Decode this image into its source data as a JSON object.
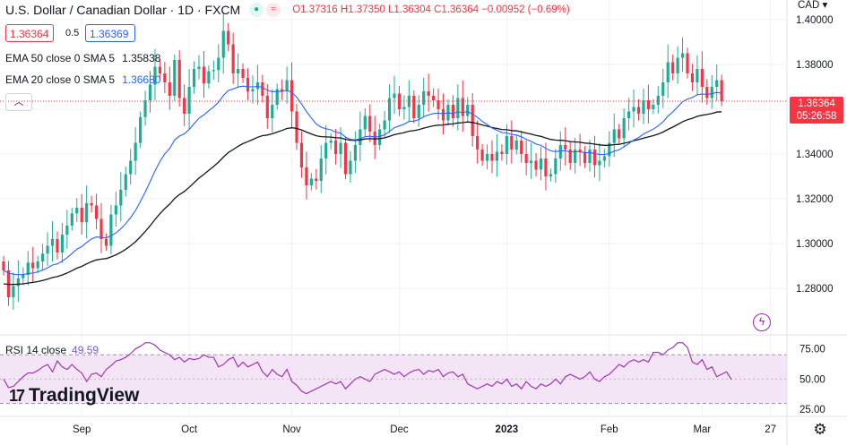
{
  "header": {
    "symbol": "U.S. Dollar / Canadian Dollar · 1D · FXCM",
    "ohlc": "O1.37316 H1.37350 L1.36304 C1.36364 −0.00952 (−0.69%)"
  },
  "trade": {
    "bid": "1.36364",
    "spread": "0.5",
    "ask": "1.36369"
  },
  "indicators": {
    "ema50_label": "EMA 50 close 0 SMA 5",
    "ema50_value": "1.35838",
    "ema20_label": "EMA 20 close 0 SMA 5",
    "ema20_value": "1.36680",
    "rsi_label": "RSI 14 close",
    "rsi_value": "49.59"
  },
  "price_badge": {
    "price": "1.36364",
    "countdown": "05:26:58"
  },
  "branding": {
    "logo_text": "TradingView"
  },
  "icons": {
    "collapse": "chevron-up-icon",
    "bolt": "lightning-icon",
    "settings": "gear-icon"
  },
  "colors": {
    "up": "#22ab94",
    "down": "#f23645",
    "ema20": "#2962ff",
    "ema50": "#131722",
    "rsi": "#9c27b0",
    "rsi_band": "#f3e5f5"
  },
  "chart_data": {
    "type": "candlestick",
    "title": "U.S. Dollar / Canadian Dollar · 1D · FXCM",
    "currency": "CAD",
    "y_ticks": [
      "1.28000",
      "1.30000",
      "1.32000",
      "1.34000",
      "1.36000",
      "1.38000",
      "1.40000"
    ],
    "y_tick_values": [
      1.28,
      1.3,
      1.32,
      1.34,
      1.36,
      1.38,
      1.4
    ],
    "ylim": [
      1.26,
      1.4
    ],
    "x_labels": [
      "Sep",
      "Oct",
      "Nov",
      "Dec",
      "2023",
      "Feb",
      "Mar",
      "27"
    ],
    "x_label_bars": [
      16,
      38,
      59,
      81,
      103,
      124,
      143,
      157
    ],
    "close": [
      1.288,
      1.276,
      1.281,
      1.2845,
      1.286,
      1.2915,
      1.289,
      1.292,
      1.2955,
      1.299,
      1.302,
      1.296,
      1.304,
      1.308,
      1.3135,
      1.316,
      1.3095,
      1.318,
      1.317,
      1.311,
      1.302,
      1.299,
      1.313,
      1.317,
      1.324,
      1.331,
      1.337,
      1.345,
      1.3565,
      1.364,
      1.371,
      1.379,
      1.376,
      1.372,
      1.366,
      1.382,
      1.365,
      1.358,
      1.37,
      1.378,
      1.379,
      1.3715,
      1.377,
      1.3775,
      1.383,
      1.395,
      1.389,
      1.376,
      1.378,
      1.374,
      1.368,
      1.369,
      1.372,
      1.366,
      1.356,
      1.362,
      1.369,
      1.368,
      1.373,
      1.359,
      1.345,
      1.334,
      1.326,
      1.329,
      1.328,
      1.338,
      1.345,
      1.346,
      1.34,
      1.345,
      1.331,
      1.337,
      1.344,
      1.351,
      1.357,
      1.35,
      1.344,
      1.351,
      1.355,
      1.365,
      1.367,
      1.36,
      1.361,
      1.366,
      1.356,
      1.362,
      1.368,
      1.366,
      1.364,
      1.36,
      1.355,
      1.362,
      1.356,
      1.365,
      1.357,
      1.362,
      1.348,
      1.342,
      1.337,
      1.34,
      1.337,
      1.341,
      1.34,
      1.348,
      1.342,
      1.346,
      1.34,
      1.336,
      1.337,
      1.333,
      1.338,
      1.33,
      1.331,
      1.338,
      1.344,
      1.342,
      1.336,
      1.342,
      1.341,
      1.336,
      1.342,
      1.335,
      1.337,
      1.339,
      1.345,
      1.351,
      1.347,
      1.356,
      1.359,
      1.361,
      1.358,
      1.364,
      1.36,
      1.362,
      1.366,
      1.372,
      1.381,
      1.376,
      1.383,
      1.385,
      1.376,
      1.372,
      1.378,
      1.37,
      1.365,
      1.37,
      1.373,
      1.3636
    ],
    "series": [
      {
        "name": "EMA 50 close",
        "color": "#131722"
      },
      {
        "name": "EMA 20 close",
        "color": "#2962ff"
      }
    ],
    "rsi": {
      "name": "RSI 14 close",
      "ylim": [
        20,
        85
      ],
      "ticks": [
        "25.00",
        "50.00",
        "75.00"
      ],
      "tick_values": [
        25,
        50,
        75
      ],
      "band": [
        30,
        70
      ],
      "values": [
        50,
        43,
        44,
        48,
        52,
        55,
        55,
        57,
        60,
        62,
        56,
        65,
        60,
        58,
        62,
        58,
        55,
        48,
        54,
        55,
        52,
        58,
        61,
        65,
        66,
        68,
        71,
        75,
        77,
        80,
        80,
        78,
        74,
        72,
        70,
        66,
        68,
        64,
        67,
        66,
        67,
        70,
        68,
        68,
        60,
        62,
        66,
        68,
        60,
        64,
        60,
        62,
        64,
        56,
        52,
        58,
        54,
        52,
        58,
        48,
        45,
        40,
        38,
        40,
        42,
        44,
        46,
        48,
        46,
        48,
        42,
        46,
        50,
        52,
        50,
        48,
        54,
        56,
        58,
        56,
        54,
        56,
        52,
        55,
        57,
        58,
        54,
        57,
        56,
        58,
        52,
        55,
        56,
        52,
        54,
        46,
        44,
        42,
        44,
        46,
        44,
        48,
        46,
        50,
        44,
        46,
        42,
        48,
        44,
        42,
        46,
        44,
        46,
        50,
        46,
        52,
        54,
        52,
        50,
        52,
        56,
        50,
        48,
        52,
        54,
        58,
        62,
        60,
        64,
        66,
        64,
        66,
        64,
        72,
        72,
        70,
        74,
        76,
        80,
        80,
        76,
        64,
        62,
        66,
        58,
        60,
        52,
        54,
        56,
        49.59
      ]
    }
  }
}
